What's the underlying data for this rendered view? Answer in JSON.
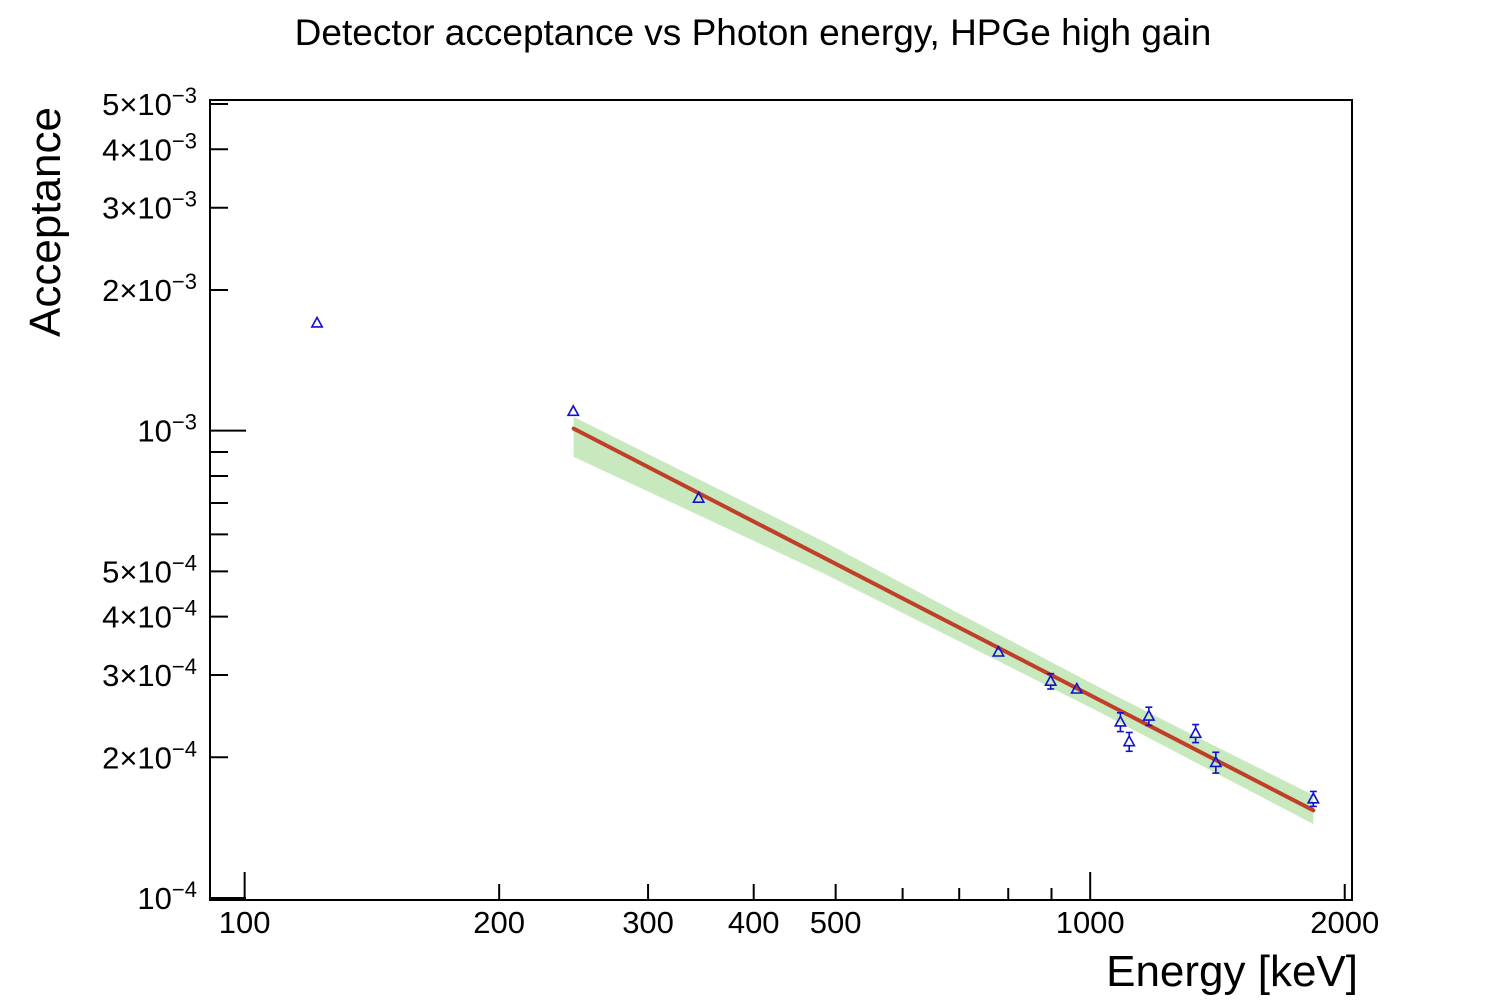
{
  "title": "Detector acceptance vs Photon energy, HPGe high gain",
  "x_axis_title": "Energy [keV]",
  "y_axis_title": "Acceptance",
  "colors": {
    "background": "#ffffff",
    "frame": "#000000",
    "marker": "#1111cc",
    "fit_line": "#bf3f28",
    "band": "#c8e8be"
  },
  "chart_data": {
    "type": "scatter",
    "title": "Detector acceptance vs Photon energy, HPGe high gain",
    "xlabel": "Energy [keV]",
    "ylabel": "Acceptance",
    "xscale": "log",
    "yscale": "log",
    "xlim": [
      91,
      2040
    ],
    "ylim": [
      9.9e-05,
      0.0051
    ],
    "grid": false,
    "legend_position": "none",
    "series": [
      {
        "name": "measured-acceptance-points",
        "type": "scatter",
        "marker": "open-triangle-up",
        "color": "#1111cc",
        "points": [
          {
            "E": 121.8,
            "A": 0.0017,
            "err": 2.5e-05
          },
          {
            "E": 244.7,
            "A": 0.0011,
            "err": 3e-05
          },
          {
            "E": 344.3,
            "A": 0.000717,
            "err": 1.3e-05
          },
          {
            "E": 778.9,
            "A": 0.000336,
            "err": 9e-06
          },
          {
            "E": 898.0,
            "A": 0.000291,
            "err": 1.1e-05
          },
          {
            "E": 964.1,
            "A": 0.00028,
            "err": 8e-06
          },
          {
            "E": 1085.8,
            "A": 0.000238,
            "err": 1.1e-05
          },
          {
            "E": 1112.1,
            "A": 0.000216,
            "err": 1e-05
          },
          {
            "E": 1173.2,
            "A": 0.000245,
            "err": 1.1e-05
          },
          {
            "E": 1332.5,
            "A": 0.000225,
            "err": 1e-05
          },
          {
            "E": 1408.0,
            "A": 0.000195,
            "err": 1e-05
          },
          {
            "E": 1836.1,
            "A": 0.000163,
            "err": 6e-06
          }
        ]
      },
      {
        "name": "power-law-fit",
        "type": "line",
        "color": "#bf3f28",
        "E": [
          245,
          1836
        ],
        "A": [
          0.00101,
          0.000154
        ]
      },
      {
        "name": "fit-uncertainty-band",
        "type": "band",
        "color": "#c8e8be",
        "E": [
          245,
          486,
          700,
          1030,
          1400,
          1836
        ],
        "upper": [
          0.00107,
          0.000577,
          0.000406,
          0.000281,
          0.000212,
          0.000166
        ],
        "lower": [
          0.000879,
          0.000493,
          0.000354,
          0.000249,
          0.000186,
          0.000144
        ]
      }
    ],
    "x_ticks_major": [
      {
        "v": 100,
        "label": "100",
        "long": true
      },
      {
        "v": 200,
        "label": "200",
        "long": false
      },
      {
        "v": 300,
        "label": "300",
        "long": false
      },
      {
        "v": 400,
        "label": "400",
        "long": false
      },
      {
        "v": 500,
        "label": "500",
        "long": false
      },
      {
        "v": 1000,
        "label": "1000",
        "long": true
      },
      {
        "v": 2000,
        "label": "2000",
        "long": false
      }
    ],
    "x_ticks_minor": [
      600,
      700,
      800,
      900
    ],
    "y_ticks_major": [
      {
        "v": 0.005,
        "m": "5×10",
        "e": "−3",
        "long": false
      },
      {
        "v": 0.004,
        "m": "4×10",
        "e": "−3",
        "long": false
      },
      {
        "v": 0.003,
        "m": "3×10",
        "e": "−3",
        "long": false
      },
      {
        "v": 0.002,
        "m": "2×10",
        "e": "−3",
        "long": false
      },
      {
        "v": 0.001,
        "m": "10",
        "e": "−3",
        "long": true
      },
      {
        "v": 0.0005,
        "m": "5×10",
        "e": "−4",
        "long": false
      },
      {
        "v": 0.0004,
        "m": "4×10",
        "e": "−4",
        "long": false
      },
      {
        "v": 0.0003,
        "m": "3×10",
        "e": "−4",
        "long": false
      },
      {
        "v": 0.0002,
        "m": "2×10",
        "e": "−4",
        "long": false
      },
      {
        "v": 0.0001,
        "m": "10",
        "e": "−4",
        "long": true
      }
    ],
    "y_ticks_minor": [
      0.0009,
      0.0008,
      0.0007,
      0.0006
    ]
  }
}
